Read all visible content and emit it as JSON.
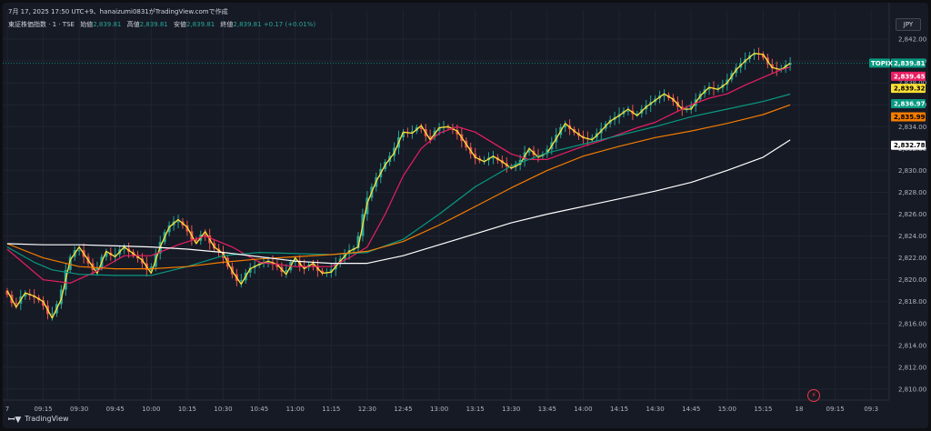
{
  "header": {
    "caption": "7月 17, 2025 17:50 UTC+9、hanaizumi0831がTradingView.comで作成"
  },
  "legend": {
    "symbol": "東証株価指数 · 1 · TSE",
    "open_label": "始値",
    "open": "2,839.81",
    "high_label": "高値",
    "high": "2,839.81",
    "low_label": "安値",
    "low": "2,839.81",
    "close_label": "終値",
    "close": "2,839.81",
    "change": "+0.17 (+0.01%)"
  },
  "currency": "JPY",
  "footer": {
    "brand": "TradingView"
  },
  "colors": {
    "up": "#26a69a",
    "down": "#ef5350",
    "ma_yellow": "#fce034",
    "ma_pink": "#e91e63",
    "ma_teal": "#089981",
    "ma_orange": "#f57c00",
    "ma_white": "#ffffff"
  },
  "chart_data": {
    "type": "line",
    "title": "東証株価指数 · 1 · TSE",
    "ylim": [
      2809,
      2843
    ],
    "y_ticks": [
      2810,
      2812,
      2814,
      2816,
      2818,
      2820,
      2822,
      2824,
      2826,
      2828,
      2830,
      2832,
      2834,
      2836,
      2838,
      2840,
      2842
    ],
    "y_tick_labels": [
      "2,810.00",
      "2,812.00",
      "2,814.00",
      "2,816.00",
      "2,818.00",
      "2,820.00",
      "2,822.00",
      "2,824.00",
      "2,826.00",
      "2,828.00",
      "2,830.00",
      "2,832.00",
      "2,834.00",
      "2,836.00",
      "2,838.00",
      "2,840.00",
      "2,842.00"
    ],
    "x_ticks": [
      "7",
      "09:15",
      "09:30",
      "09:45",
      "10:00",
      "10:15",
      "10:30",
      "10:45",
      "11:00",
      "11:15",
      "12:30",
      "12:45",
      "13:00",
      "13:15",
      "13:30",
      "13:45",
      "14:00",
      "14:15",
      "14:30",
      "14:45",
      "15:00",
      "15:15",
      "18",
      "09:15",
      "09:3"
    ],
    "x_tick_pos": [
      0,
      8,
      16,
      24,
      32,
      40,
      48,
      56,
      64,
      72,
      80,
      88,
      96,
      104,
      112,
      120,
      128,
      136,
      144,
      152,
      160,
      168,
      176,
      184,
      192
    ],
    "x_range": [
      -1,
      196
    ],
    "last_bar": 174,
    "series": [
      {
        "name": "TOPIX",
        "color": "#fce034",
        "x": [
          0,
          2,
          4,
          6,
          8,
          10,
          12,
          14,
          16,
          18,
          20,
          22,
          24,
          26,
          28,
          30,
          32,
          34,
          36,
          38,
          40,
          42,
          44,
          46,
          48,
          50,
          52,
          54,
          56,
          58,
          60,
          62,
          64,
          66,
          68,
          70,
          72,
          74,
          76,
          78,
          80,
          82,
          84,
          86,
          88,
          90,
          92,
          94,
          96,
          98,
          100,
          102,
          104,
          106,
          108,
          110,
          112,
          114,
          116,
          118,
          120,
          122,
          124,
          126,
          128,
          130,
          132,
          134,
          136,
          138,
          140,
          142,
          144,
          146,
          148,
          150,
          152,
          154,
          156,
          158,
          160,
          162,
          164,
          166,
          168,
          170,
          172,
          174
        ],
        "values": [
          2819.0,
          2817.5,
          2818.8,
          2818.5,
          2818.0,
          2816.5,
          2818.2,
          2821.8,
          2823.0,
          2821.8,
          2820.6,
          2822.6,
          2822.1,
          2823.0,
          2822.4,
          2821.8,
          2820.6,
          2823.0,
          2824.8,
          2825.5,
          2824.8,
          2823.3,
          2824.4,
          2823.0,
          2822.4,
          2820.8,
          2819.6,
          2821.0,
          2821.4,
          2821.7,
          2821.4,
          2820.5,
          2822.0,
          2821.0,
          2821.5,
          2820.6,
          2820.7,
          2821.7,
          2822.6,
          2823.0,
          2827.0,
          2829.0,
          2830.5,
          2831.6,
          2833.5,
          2833.4,
          2834.1,
          2832.8,
          2833.9,
          2834.0,
          2833.6,
          2832.4,
          2831.2,
          2830.8,
          2831.3,
          2830.8,
          2830.2,
          2830.6,
          2832.0,
          2831.2,
          2831.6,
          2832.9,
          2834.3,
          2833.6,
          2833.0,
          2832.8,
          2833.6,
          2834.5,
          2835.0,
          2835.6,
          2835.0,
          2835.8,
          2836.4,
          2837.0,
          2836.5,
          2835.6,
          2835.6,
          2836.8,
          2837.6,
          2837.4,
          2838.0,
          2839.2,
          2840.0,
          2840.7,
          2840.6,
          2839.4,
          2839.2,
          2839.8
        ]
      },
      {
        "color": "#e91e63",
        "x": [
          0,
          8,
          14,
          20,
          26,
          32,
          38,
          44,
          50,
          56,
          64,
          72,
          76,
          80,
          84,
          88,
          92,
          96,
          100,
          104,
          108,
          112,
          116,
          120,
          124,
          128,
          132,
          136,
          140,
          144,
          148,
          152,
          156,
          160,
          164,
          168,
          172,
          174
        ],
        "values": [
          2822.8,
          2820.0,
          2819.7,
          2820.8,
          2822.2,
          2822.2,
          2823.2,
          2824.0,
          2823.0,
          2821.6,
          2821.2,
          2821.2,
          2822.0,
          2823.0,
          2826.0,
          2829.5,
          2832.0,
          2833.4,
          2834.0,
          2833.5,
          2832.5,
          2831.5,
          2831.0,
          2831.0,
          2831.6,
          2832.2,
          2832.7,
          2833.3,
          2833.9,
          2834.4,
          2835.2,
          2836.0,
          2836.6,
          2837.0,
          2837.8,
          2838.5,
          2839.2,
          2839.45
        ]
      },
      {
        "color": "#089981",
        "x": [
          0,
          6,
          10,
          16,
          24,
          32,
          40,
          48,
          56,
          64,
          72,
          80,
          88,
          96,
          104,
          112,
          120,
          128,
          136,
          144,
          152,
          160,
          168,
          174
        ],
        "values": [
          2823.0,
          2821.6,
          2820.9,
          2820.5,
          2820.4,
          2820.4,
          2821.2,
          2822.2,
          2822.5,
          2822.4,
          2822.3,
          2822.5,
          2823.7,
          2826.0,
          2828.5,
          2830.4,
          2831.6,
          2832.4,
          2833.2,
          2834.0,
          2834.9,
          2835.6,
          2836.3,
          2836.97
        ]
      },
      {
        "color": "#f57c00",
        "x": [
          0,
          8,
          16,
          24,
          32,
          40,
          48,
          56,
          64,
          72,
          80,
          88,
          96,
          104,
          112,
          120,
          128,
          136,
          144,
          152,
          160,
          168,
          174
        ],
        "values": [
          2823.3,
          2822.0,
          2821.2,
          2821.0,
          2821.0,
          2821.2,
          2821.6,
          2821.9,
          2822.1,
          2822.3,
          2822.6,
          2823.5,
          2825.0,
          2826.7,
          2828.4,
          2830.0,
          2831.3,
          2832.2,
          2833.0,
          2833.6,
          2834.3,
          2835.1,
          2835.99
        ]
      },
      {
        "color": "#ffffff",
        "x": [
          0,
          8,
          16,
          24,
          32,
          40,
          48,
          56,
          64,
          72,
          80,
          88,
          96,
          104,
          112,
          120,
          128,
          136,
          144,
          152,
          160,
          168,
          174
        ],
        "values": [
          2823.3,
          2823.2,
          2823.2,
          2823.1,
          2823.0,
          2822.8,
          2822.5,
          2822.1,
          2821.7,
          2821.5,
          2821.5,
          2822.2,
          2823.2,
          2824.2,
          2825.2,
          2826.0,
          2826.7,
          2827.4,
          2828.1,
          2828.9,
          2830.0,
          2831.2,
          2832.78
        ]
      }
    ],
    "price_tags": [
      {
        "label": "TOPIX",
        "value": "2,839.81",
        "y": 2839.81,
        "bg": "#089981",
        "fg": "#ffffff"
      },
      {
        "value": "2,839.45",
        "y": 2838.6,
        "bg": "#e91e63",
        "fg": "#ffffff"
      },
      {
        "value": "2,839.32",
        "y": 2837.5,
        "bg": "#fce034",
        "fg": "#000000"
      },
      {
        "value": "2,836.97",
        "y": 2836.1,
        "bg": "#089981",
        "fg": "#ffffff"
      },
      {
        "value": "2,835.99",
        "y": 2834.9,
        "bg": "#f57c00",
        "fg": "#000000"
      },
      {
        "value": "2,832.78",
        "y": 2832.3,
        "bg": "#ffffff",
        "fg": "#000000"
      }
    ]
  }
}
